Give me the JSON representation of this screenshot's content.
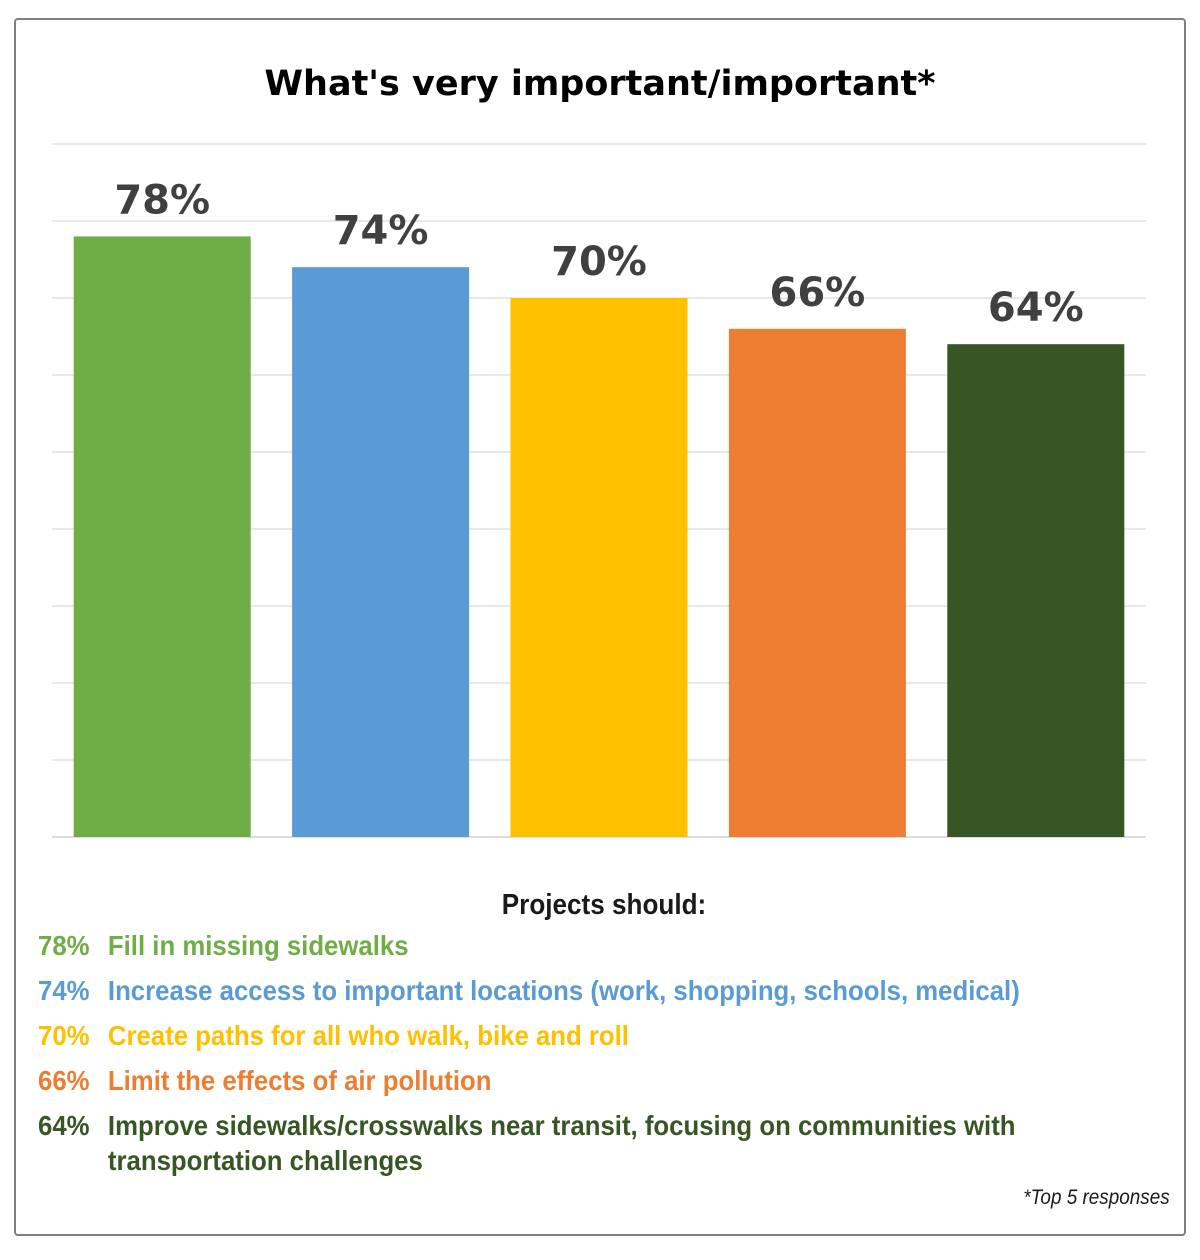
{
  "chart_data": {
    "type": "bar",
    "title": "What's very important/important*",
    "categories": [
      "Fill in missing sidewalks",
      "Increase access to important locations",
      "Create paths for all who walk, bike and roll",
      "Limit the effects of air pollution",
      "Improve sidewalks/crosswalks near transit"
    ],
    "values": [
      78,
      74,
      70,
      66,
      64
    ],
    "data_labels": [
      "78%",
      "74%",
      "70%",
      "66%",
      "64%"
    ],
    "colors": [
      "#70ad47",
      "#5b9bd5",
      "#ffc000",
      "#ed7d31",
      "#375623"
    ],
    "ylim": [
      0,
      90
    ],
    "grid": true,
    "xlabel": "",
    "ylabel": ""
  },
  "legend": {
    "heading": "Projects should:",
    "items": [
      {
        "pct": "78%",
        "text": "Fill in missing sidewalks",
        "color": "#70ad47"
      },
      {
        "pct": "74%",
        "text": "Increase access to important locations (work, shopping, schools, medical)",
        "color": "#5b9bd5"
      },
      {
        "pct": "70%",
        "text": "Create paths for all who walk, bike and roll",
        "color": "#ffc000"
      },
      {
        "pct": "66%",
        "text": "Limit the effects of air pollution",
        "color": "#ed7d31"
      },
      {
        "pct": "64%",
        "text": "Improve sidewalks/crosswalks near transit, focusing on communities with transportation challenges",
        "color": "#375623"
      }
    ]
  },
  "footnote": "*Top 5 responses"
}
